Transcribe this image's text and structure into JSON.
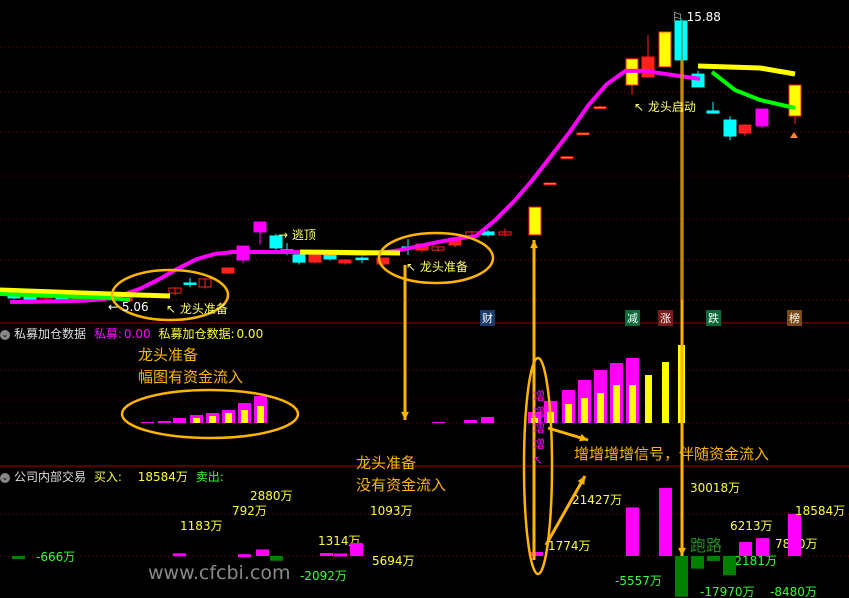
{
  "colors": {
    "up": "#ff2020",
    "down": "#00ffff",
    "limit_up": "#ffff00",
    "strong": "#ff00ff",
    "trend": "#ff00ff",
    "annot": "#ffb400",
    "sell": "#008000",
    "sell_text": "#33ff33",
    "buy_text": "#ffff33"
  },
  "main_panel": {
    "high_label": "15.88",
    "low_label": "5.06",
    "signals": [
      "逃顶",
      "龙头准备",
      "龙头准备",
      "龙头启动"
    ],
    "event_tags": [
      "财",
      "减",
      "涨",
      "跌",
      "榜"
    ]
  },
  "panel2": {
    "title": "私募加仓数据",
    "k1_label": "私募:",
    "k1_value": "0.00",
    "k2_label": "私募加仓数据:",
    "k2_value": "0.00",
    "signal_chars": [
      "增",
      "增",
      "增",
      "增"
    ]
  },
  "panel3": {
    "title": "公司内部交易",
    "buy_label": "买入:",
    "buy_value": "18584万",
    "sell_label": "卖出:"
  },
  "annotations": {
    "a1_line1": "龙头准备",
    "a1_line2": "幅图有资金流入",
    "a2_line1": "龙头准备",
    "a2_line2": "没有资金流入",
    "a3": "增增增增信号，伴随资金流入",
    "a4": "跑路"
  },
  "watermark": "www.cfcbi.com",
  "chart_data": [
    {
      "type": "candlestick",
      "price_range": [
        5.06,
        15.88
      ],
      "candles": [
        {
          "o": 5.5,
          "c": 5.4,
          "h": 5.55,
          "l": 5.35,
          "k": "down"
        },
        {
          "o": 5.45,
          "c": 5.35,
          "h": 5.5,
          "l": 5.25,
          "k": "down"
        },
        {
          "o": 5.4,
          "c": 5.45,
          "h": 5.5,
          "l": 5.3,
          "k": "up"
        },
        {
          "o": 5.4,
          "c": 5.3,
          "h": 5.45,
          "l": 5.25,
          "k": "down"
        },
        {
          "o": 5.35,
          "c": 5.38,
          "h": 5.45,
          "l": 5.2,
          "k": "up"
        },
        {
          "o": 5.35,
          "c": 5.3,
          "h": 5.4,
          "l": 5.25,
          "k": "down"
        },
        {
          "o": 5.45,
          "c": 5.35,
          "h": 5.5,
          "l": 5.3,
          "k": "down"
        },
        {
          "o": 5.3,
          "c": 5.4,
          "h": 5.45,
          "l": 5.2,
          "k": "up"
        },
        {
          "o": 5.58,
          "c": 5.77,
          "h": 5.8,
          "l": 5.5,
          "k": "up"
        },
        {
          "o": 5.96,
          "c": 5.96,
          "h": 6.15,
          "l": 5.8,
          "k": "down"
        },
        {
          "o": 5.81,
          "c": 6.11,
          "h": 6.11,
          "l": 5.75,
          "k": "up"
        },
        {
          "o": 6.33,
          "c": 6.52,
          "h": 6.55,
          "l": 6.3,
          "k": "up"
        },
        {
          "o": 6.82,
          "c": 7.34,
          "h": 7.36,
          "l": 6.7,
          "k": "strong"
        },
        {
          "o": 7.87,
          "c": 8.24,
          "h": 8.26,
          "l": 7.4,
          "k": "strong"
        },
        {
          "o": 7.72,
          "c": 7.27,
          "h": 7.8,
          "l": 7.2,
          "k": "down"
        },
        {
          "o": 7.08,
          "c": 7.2,
          "h": 7.45,
          "l": 7.0,
          "k": "down"
        },
        {
          "o": 7.01,
          "c": 6.74,
          "h": 7.05,
          "l": 6.65,
          "k": "down"
        },
        {
          "o": 6.74,
          "c": 7.01,
          "h": 7.05,
          "l": 6.7,
          "k": "up"
        },
        {
          "o": 7.01,
          "c": 6.86,
          "h": 7.05,
          "l": 6.8,
          "k": "down"
        },
        {
          "o": 6.71,
          "c": 6.82,
          "h": 6.86,
          "l": 6.65,
          "k": "up"
        },
        {
          "o": 6.89,
          "c": 6.86,
          "h": 6.95,
          "l": 6.7,
          "k": "down"
        },
        {
          "o": 6.67,
          "c": 6.89,
          "h": 6.9,
          "l": 6.6,
          "k": "up"
        },
        {
          "o": 7.31,
          "c": 7.31,
          "h": 7.6,
          "l": 7.0,
          "k": "down"
        },
        {
          "o": 7.19,
          "c": 7.42,
          "h": 7.42,
          "l": 7.1,
          "k": "up"
        },
        {
          "o": 7.19,
          "c": 7.31,
          "h": 7.35,
          "l": 7.15,
          "k": "up"
        },
        {
          "o": 7.38,
          "c": 7.64,
          "h": 7.64,
          "l": 7.3,
          "k": "up"
        },
        {
          "o": 7.72,
          "c": 7.87,
          "h": 7.9,
          "l": 7.6,
          "k": "up"
        },
        {
          "o": 7.76,
          "c": 7.87,
          "h": 7.95,
          "l": 7.7,
          "k": "down"
        },
        {
          "o": 7.76,
          "c": 7.87,
          "h": 8.0,
          "l": 7.7,
          "k": "up"
        },
        {
          "o": 7.76,
          "c": 8.8,
          "h": 8.8,
          "l": 7.76,
          "k": "limit_up"
        },
        {
          "o": 9.7,
          "c": 9.7,
          "h": 9.7,
          "l": 9.7,
          "k": "limit_up"
        },
        {
          "o": 10.68,
          "c": 10.68,
          "h": 10.68,
          "l": 10.68,
          "k": "limit_up"
        },
        {
          "o": 11.57,
          "c": 11.57,
          "h": 11.57,
          "l": 11.57,
          "k": "limit_up"
        },
        {
          "o": 12.55,
          "c": 12.55,
          "h": 12.6,
          "l": 12.5,
          "k": "limit_up"
        },
        {
          "o": 13.37,
          "c": 14.35,
          "h": 14.35,
          "l": 13.0,
          "k": "limit_up"
        },
        {
          "o": 13.67,
          "c": 14.42,
          "h": 15.24,
          "l": 13.67,
          "k": "up"
        },
        {
          "o": 14.05,
          "c": 15.36,
          "h": 15.36,
          "l": 14.05,
          "k": "limit_up"
        },
        {
          "o": 15.77,
          "c": 14.31,
          "h": 15.88,
          "l": 14.3,
          "k": "down"
        },
        {
          "o": 13.78,
          "c": 13.3,
          "h": 13.9,
          "l": 13.3,
          "k": "down"
        },
        {
          "o": 12.4,
          "c": 12.32,
          "h": 12.74,
          "l": 12.3,
          "k": "down"
        },
        {
          "o": 12.06,
          "c": 11.46,
          "h": 12.2,
          "l": 11.3,
          "k": "down"
        },
        {
          "o": 11.87,
          "c": 11.57,
          "h": 11.9,
          "l": 11.45,
          "k": "up"
        },
        {
          "o": 11.84,
          "c": 12.47,
          "h": 12.5,
          "l": 11.75,
          "k": "strong"
        },
        {
          "o": 12.21,
          "c": 13.37,
          "h": 13.37,
          "l": 11.9,
          "k": "limit_up"
        }
      ],
      "trend_line": [
        5.25,
        5.25,
        5.27,
        5.28,
        5.3,
        5.35,
        5.5,
        5.75,
        6.1,
        6.5,
        6.85,
        7.05,
        7.12,
        7.12,
        7.12,
        7.12,
        7.1,
        7.08,
        7.07,
        7.05,
        7.1,
        7.2,
        7.35,
        7.5,
        7.62,
        7.72,
        8.3,
        9.0,
        9.8,
        10.7,
        11.6,
        12.6,
        13.4,
        13.9,
        13.9,
        13.8,
        13.7,
        13.6
      ]
    },
    {
      "type": "bar",
      "title": "私募加仓数据",
      "series": [
        {
          "name": "私募",
          "values": [
            1,
            2,
            5,
            8,
            10,
            13,
            20,
            27,
            0,
            1,
            3,
            6,
            11,
            22,
            33,
            43,
            53,
            60,
            65,
            0,
            0,
            0
          ]
        },
        {
          "name": "私募加仓数据",
          "values": [
            0,
            0,
            0,
            5,
            7,
            10,
            13,
            17,
            0,
            0,
            0,
            0,
            5,
            11,
            19,
            25,
            30,
            38,
            38,
            48,
            61,
            78
          ]
        }
      ]
    },
    {
      "type": "bar",
      "title": "公司内部交易",
      "unit": "万",
      "values": [
        -666,
        1183,
        792,
        2880,
        -2092,
        1314,
        1093,
        5694,
        1774,
        21427,
        30018,
        -17970,
        -5557,
        -2181,
        -8480,
        6213,
        7880,
        18584
      ],
      "labels": [
        "-666万",
        "1183万",
        "792万",
        "2880万",
        "-2092万",
        "1314万",
        "1093万",
        "5694万",
        "1774万",
        "21427万",
        "30018万",
        "-17970万",
        "-5557万",
        "-2181万",
        "-8480万",
        "6213万",
        "7880万",
        "18584万"
      ]
    }
  ]
}
